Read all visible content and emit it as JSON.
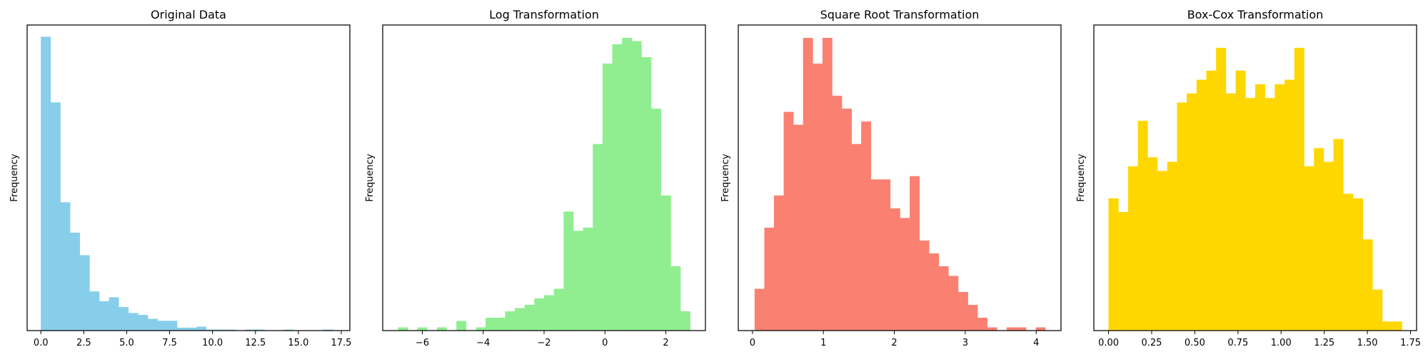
{
  "chart_data": [
    {
      "type": "bar",
      "title": "Original Data",
      "xlabel": "",
      "ylabel": "Frequency",
      "xlim": [
        -0.8,
        18.0
      ],
      "ylim": [
        0,
        312
      ],
      "xticks": [
        0.0,
        2.5,
        5.0,
        7.5,
        10.0,
        12.5,
        15.0,
        17.5
      ],
      "xtick_labels": [
        "0.0",
        "2.5",
        "5.0",
        "7.5",
        "10.0",
        "12.5",
        "15.0",
        "17.5"
      ],
      "color": "#87CEEB",
      "bin_edges": [
        0.0,
        0.566,
        1.133,
        1.7,
        2.267,
        2.833,
        3.4,
        3.967,
        4.533,
        5.1,
        5.667,
        6.233,
        6.8,
        7.367,
        7.933,
        8.5,
        9.067,
        9.633,
        10.2,
        10.767,
        11.333,
        11.9,
        12.467,
        13.033,
        13.6,
        14.167,
        14.733,
        15.3,
        15.867,
        16.433,
        17.0
      ],
      "counts": [
        300,
        233,
        131,
        100,
        77,
        40,
        30,
        34,
        24,
        18,
        16,
        12,
        10,
        10,
        3,
        3,
        4,
        1,
        1,
        1,
        0,
        1,
        1,
        0,
        0,
        1,
        0,
        0,
        0,
        1
      ]
    },
    {
      "type": "bar",
      "title": "Log Transformation",
      "xlabel": "",
      "ylabel": "Frequency",
      "xlim": [
        -7.3,
        3.3
      ],
      "ylim": [
        0,
        95
      ],
      "xticks": [
        -6,
        -4,
        -2,
        0,
        2
      ],
      "xtick_labels": [
        "−6",
        "−4",
        "−2",
        "0",
        "2"
      ],
      "color": "#90EE90",
      "bin_edges": [
        -6.8,
        -6.48,
        -6.16,
        -5.84,
        -5.52,
        -5.2,
        -4.88,
        -4.56,
        -4.24,
        -3.92,
        -3.6,
        -3.28,
        -2.96,
        -2.64,
        -2.32,
        -2.0,
        -1.68,
        -1.36,
        -1.04,
        -0.72,
        -0.4,
        -0.08,
        0.24,
        0.56,
        0.88,
        1.2,
        1.52,
        1.84,
        2.16,
        2.48,
        2.8
      ],
      "counts": [
        1,
        0,
        1,
        0,
        1,
        0,
        3,
        0,
        1,
        4,
        4,
        6,
        7,
        8,
        10,
        11,
        13,
        37,
        31,
        32,
        58,
        83,
        89,
        91,
        90,
        85,
        69,
        42,
        20,
        6
      ]
    },
    {
      "type": "bar",
      "title": "Square Root Transformation",
      "xlabel": "",
      "ylabel": "Frequency",
      "xlim": [
        -0.2,
        4.35
      ],
      "ylim": [
        0,
        95
      ],
      "xticks": [
        0,
        1,
        2,
        3,
        4
      ],
      "xtick_labels": [
        "0",
        "1",
        "2",
        "3",
        "4"
      ],
      "color": "#FA8072",
      "bin_edges": [
        0.03,
        0.167,
        0.303,
        0.44,
        0.577,
        0.713,
        0.85,
        0.987,
        1.123,
        1.26,
        1.397,
        1.533,
        1.67,
        1.807,
        1.943,
        2.08,
        2.217,
        2.353,
        2.49,
        2.627,
        2.763,
        2.9,
        3.037,
        3.173,
        3.31,
        3.447,
        3.583,
        3.72,
        3.857,
        3.993,
        4.13
      ],
      "counts": [
        13,
        32,
        42,
        68,
        64,
        91,
        83,
        91,
        73,
        69,
        58,
        65,
        47,
        47,
        38,
        35,
        48,
        28,
        24,
        20,
        17,
        12,
        8,
        4,
        1,
        0,
        1,
        1,
        0,
        1
      ]
    },
    {
      "type": "bar",
      "title": "Box-Cox Transformation",
      "xlabel": "",
      "ylabel": "Frequency",
      "xlim": [
        -0.085,
        1.785
      ],
      "ylim": [
        0,
        67
      ],
      "xticks": [
        0.0,
        0.25,
        0.5,
        0.75,
        1.0,
        1.25,
        1.5,
        1.75
      ],
      "xtick_labels": [
        "0.00",
        "0.25",
        "0.50",
        "0.75",
        "1.00",
        "1.25",
        "1.50",
        "1.75"
      ],
      "color": "#FFD700",
      "bin_edges": [
        0.0,
        0.0567,
        0.1133,
        0.17,
        0.2267,
        0.2833,
        0.34,
        0.3967,
        0.4533,
        0.51,
        0.5667,
        0.6233,
        0.68,
        0.7367,
        0.7933,
        0.85,
        0.9067,
        0.9633,
        1.02,
        1.0767,
        1.1333,
        1.19,
        1.2467,
        1.3033,
        1.36,
        1.4167,
        1.4733,
        1.53,
        1.5867,
        1.6433,
        1.7
      ],
      "counts": [
        29,
        26,
        36,
        46,
        38,
        35,
        37,
        50,
        52,
        55,
        57,
        62,
        52,
        57,
        51,
        54,
        51,
        54,
        55,
        62,
        36,
        40,
        37,
        42,
        30,
        29,
        20,
        9,
        2,
        2
      ]
    }
  ]
}
